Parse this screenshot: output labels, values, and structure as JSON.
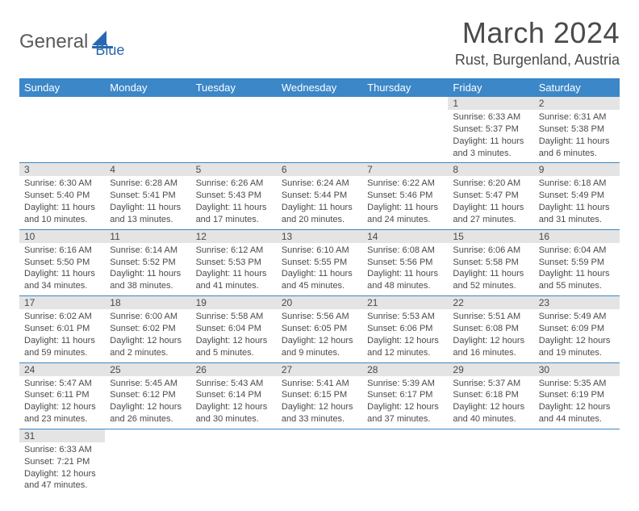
{
  "logo": {
    "part1": "General",
    "part2": "Blue"
  },
  "title": "March 2024",
  "location": "Rust, Burgenland, Austria",
  "colors": {
    "header_bg": "#3b87c8",
    "header_text": "#ffffff",
    "band_bg": "#e4e4e4",
    "rule": "#3b87c8",
    "body_text": "#4a4a4a",
    "logo_gray": "#5a5a5a",
    "logo_blue": "#2968b0"
  },
  "day_headers": [
    "Sunday",
    "Monday",
    "Tuesday",
    "Wednesday",
    "Thursday",
    "Friday",
    "Saturday"
  ],
  "weeks": [
    [
      null,
      null,
      null,
      null,
      null,
      {
        "n": "1",
        "sr": "Sunrise: 6:33 AM",
        "ss": "Sunset: 5:37 PM",
        "d1": "Daylight: 11 hours",
        "d2": "and 3 minutes."
      },
      {
        "n": "2",
        "sr": "Sunrise: 6:31 AM",
        "ss": "Sunset: 5:38 PM",
        "d1": "Daylight: 11 hours",
        "d2": "and 6 minutes."
      }
    ],
    [
      {
        "n": "3",
        "sr": "Sunrise: 6:30 AM",
        "ss": "Sunset: 5:40 PM",
        "d1": "Daylight: 11 hours",
        "d2": "and 10 minutes."
      },
      {
        "n": "4",
        "sr": "Sunrise: 6:28 AM",
        "ss": "Sunset: 5:41 PM",
        "d1": "Daylight: 11 hours",
        "d2": "and 13 minutes."
      },
      {
        "n": "5",
        "sr": "Sunrise: 6:26 AM",
        "ss": "Sunset: 5:43 PM",
        "d1": "Daylight: 11 hours",
        "d2": "and 17 minutes."
      },
      {
        "n": "6",
        "sr": "Sunrise: 6:24 AM",
        "ss": "Sunset: 5:44 PM",
        "d1": "Daylight: 11 hours",
        "d2": "and 20 minutes."
      },
      {
        "n": "7",
        "sr": "Sunrise: 6:22 AM",
        "ss": "Sunset: 5:46 PM",
        "d1": "Daylight: 11 hours",
        "d2": "and 24 minutes."
      },
      {
        "n": "8",
        "sr": "Sunrise: 6:20 AM",
        "ss": "Sunset: 5:47 PM",
        "d1": "Daylight: 11 hours",
        "d2": "and 27 minutes."
      },
      {
        "n": "9",
        "sr": "Sunrise: 6:18 AM",
        "ss": "Sunset: 5:49 PM",
        "d1": "Daylight: 11 hours",
        "d2": "and 31 minutes."
      }
    ],
    [
      {
        "n": "10",
        "sr": "Sunrise: 6:16 AM",
        "ss": "Sunset: 5:50 PM",
        "d1": "Daylight: 11 hours",
        "d2": "and 34 minutes."
      },
      {
        "n": "11",
        "sr": "Sunrise: 6:14 AM",
        "ss": "Sunset: 5:52 PM",
        "d1": "Daylight: 11 hours",
        "d2": "and 38 minutes."
      },
      {
        "n": "12",
        "sr": "Sunrise: 6:12 AM",
        "ss": "Sunset: 5:53 PM",
        "d1": "Daylight: 11 hours",
        "d2": "and 41 minutes."
      },
      {
        "n": "13",
        "sr": "Sunrise: 6:10 AM",
        "ss": "Sunset: 5:55 PM",
        "d1": "Daylight: 11 hours",
        "d2": "and 45 minutes."
      },
      {
        "n": "14",
        "sr": "Sunrise: 6:08 AM",
        "ss": "Sunset: 5:56 PM",
        "d1": "Daylight: 11 hours",
        "d2": "and 48 minutes."
      },
      {
        "n": "15",
        "sr": "Sunrise: 6:06 AM",
        "ss": "Sunset: 5:58 PM",
        "d1": "Daylight: 11 hours",
        "d2": "and 52 minutes."
      },
      {
        "n": "16",
        "sr": "Sunrise: 6:04 AM",
        "ss": "Sunset: 5:59 PM",
        "d1": "Daylight: 11 hours",
        "d2": "and 55 minutes."
      }
    ],
    [
      {
        "n": "17",
        "sr": "Sunrise: 6:02 AM",
        "ss": "Sunset: 6:01 PM",
        "d1": "Daylight: 11 hours",
        "d2": "and 59 minutes."
      },
      {
        "n": "18",
        "sr": "Sunrise: 6:00 AM",
        "ss": "Sunset: 6:02 PM",
        "d1": "Daylight: 12 hours",
        "d2": "and 2 minutes."
      },
      {
        "n": "19",
        "sr": "Sunrise: 5:58 AM",
        "ss": "Sunset: 6:04 PM",
        "d1": "Daylight: 12 hours",
        "d2": "and 5 minutes."
      },
      {
        "n": "20",
        "sr": "Sunrise: 5:56 AM",
        "ss": "Sunset: 6:05 PM",
        "d1": "Daylight: 12 hours",
        "d2": "and 9 minutes."
      },
      {
        "n": "21",
        "sr": "Sunrise: 5:53 AM",
        "ss": "Sunset: 6:06 PM",
        "d1": "Daylight: 12 hours",
        "d2": "and 12 minutes."
      },
      {
        "n": "22",
        "sr": "Sunrise: 5:51 AM",
        "ss": "Sunset: 6:08 PM",
        "d1": "Daylight: 12 hours",
        "d2": "and 16 minutes."
      },
      {
        "n": "23",
        "sr": "Sunrise: 5:49 AM",
        "ss": "Sunset: 6:09 PM",
        "d1": "Daylight: 12 hours",
        "d2": "and 19 minutes."
      }
    ],
    [
      {
        "n": "24",
        "sr": "Sunrise: 5:47 AM",
        "ss": "Sunset: 6:11 PM",
        "d1": "Daylight: 12 hours",
        "d2": "and 23 minutes."
      },
      {
        "n": "25",
        "sr": "Sunrise: 5:45 AM",
        "ss": "Sunset: 6:12 PM",
        "d1": "Daylight: 12 hours",
        "d2": "and 26 minutes."
      },
      {
        "n": "26",
        "sr": "Sunrise: 5:43 AM",
        "ss": "Sunset: 6:14 PM",
        "d1": "Daylight: 12 hours",
        "d2": "and 30 minutes."
      },
      {
        "n": "27",
        "sr": "Sunrise: 5:41 AM",
        "ss": "Sunset: 6:15 PM",
        "d1": "Daylight: 12 hours",
        "d2": "and 33 minutes."
      },
      {
        "n": "28",
        "sr": "Sunrise: 5:39 AM",
        "ss": "Sunset: 6:17 PM",
        "d1": "Daylight: 12 hours",
        "d2": "and 37 minutes."
      },
      {
        "n": "29",
        "sr": "Sunrise: 5:37 AM",
        "ss": "Sunset: 6:18 PM",
        "d1": "Daylight: 12 hours",
        "d2": "and 40 minutes."
      },
      {
        "n": "30",
        "sr": "Sunrise: 5:35 AM",
        "ss": "Sunset: 6:19 PM",
        "d1": "Daylight: 12 hours",
        "d2": "and 44 minutes."
      }
    ],
    [
      {
        "n": "31",
        "sr": "Sunrise: 6:33 AM",
        "ss": "Sunset: 7:21 PM",
        "d1": "Daylight: 12 hours",
        "d2": "and 47 minutes."
      },
      null,
      null,
      null,
      null,
      null,
      null
    ]
  ]
}
